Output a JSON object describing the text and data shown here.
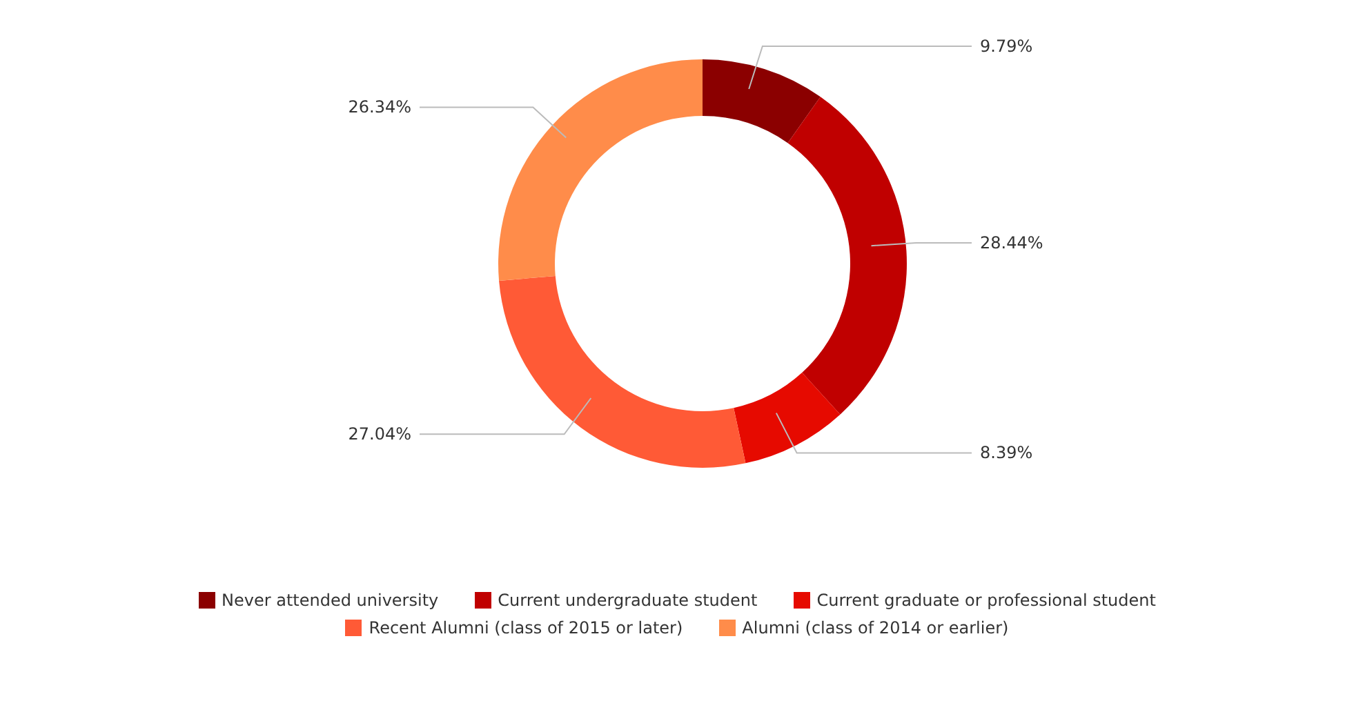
{
  "chart_data": {
    "type": "donut",
    "categories": [
      "Never attended university",
      "Current undergraduate student",
      "Current graduate or professional student",
      "Recent Alumni (class of 2015 or later)",
      "Alumni (class of 2014 or earlier)"
    ],
    "values": [
      9.79,
      28.44,
      8.39,
      27.04,
      26.34
    ],
    "value_labels": [
      "9.79%",
      "28.44%",
      "8.39%",
      "27.04%",
      "26.34%"
    ],
    "colors": [
      "#8b0000",
      "#c00000",
      "#e60a00",
      "#ff5a36",
      "#ff8c4a"
    ],
    "legend": "bottom"
  }
}
